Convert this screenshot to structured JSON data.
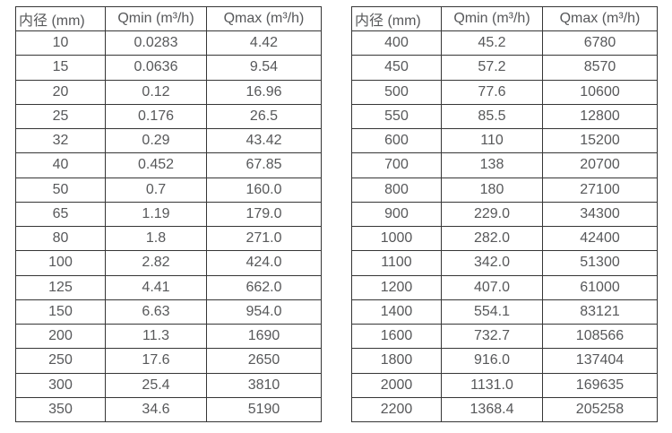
{
  "colors": {
    "border": "#363636",
    "text": "#57585a",
    "background": "#ffffff"
  },
  "tables": [
    {
      "id": "flow-table-small-dn",
      "headers": [
        "内径 (mm)",
        "Qmin (m³/h)",
        "Qmax (m³/h)"
      ],
      "rows": [
        [
          "10",
          "0.0283",
          "4.42"
        ],
        [
          "15",
          "0.0636",
          "9.54"
        ],
        [
          "20",
          "0.12",
          "16.96"
        ],
        [
          "25",
          "0.176",
          "26.5"
        ],
        [
          "32",
          "0.29",
          "43.42"
        ],
        [
          "40",
          "0.452",
          "67.85"
        ],
        [
          "50",
          "0.7",
          "160.0"
        ],
        [
          "65",
          "1.19",
          "179.0"
        ],
        [
          "80",
          "1.8",
          "271.0"
        ],
        [
          "100",
          "2.82",
          "424.0"
        ],
        [
          "125",
          "4.41",
          "662.0"
        ],
        [
          "150",
          "6.63",
          "954.0"
        ],
        [
          "200",
          "11.3",
          "1690"
        ],
        [
          "250",
          "17.6",
          "2650"
        ],
        [
          "300",
          "25.4",
          "3810"
        ],
        [
          "350",
          "34.6",
          "5190"
        ]
      ]
    },
    {
      "id": "flow-table-large-dn",
      "headers": [
        "内径 (mm)",
        "Qmin (m³/h)",
        "Qmax (m³/h)"
      ],
      "rows": [
        [
          "400",
          "45.2",
          "6780"
        ],
        [
          "450",
          "57.2",
          "8570"
        ],
        [
          "500",
          "77.6",
          "10600"
        ],
        [
          "550",
          "85.5",
          "12800"
        ],
        [
          "600",
          "110",
          "15200"
        ],
        [
          "700",
          "138",
          "20700"
        ],
        [
          "800",
          "180",
          "27100"
        ],
        [
          "900",
          "229.0",
          "34300"
        ],
        [
          "1000",
          "282.0",
          "42400"
        ],
        [
          "1100",
          "342.0",
          "51300"
        ],
        [
          "1200",
          "407.0",
          "61000"
        ],
        [
          "1400",
          "554.1",
          "83121"
        ],
        [
          "1600",
          "732.7",
          "108566"
        ],
        [
          "1800",
          "916.0",
          "137404"
        ],
        [
          "2000",
          "1131.0",
          "169635"
        ],
        [
          "2200",
          "1368.4",
          "205258"
        ]
      ]
    }
  ]
}
